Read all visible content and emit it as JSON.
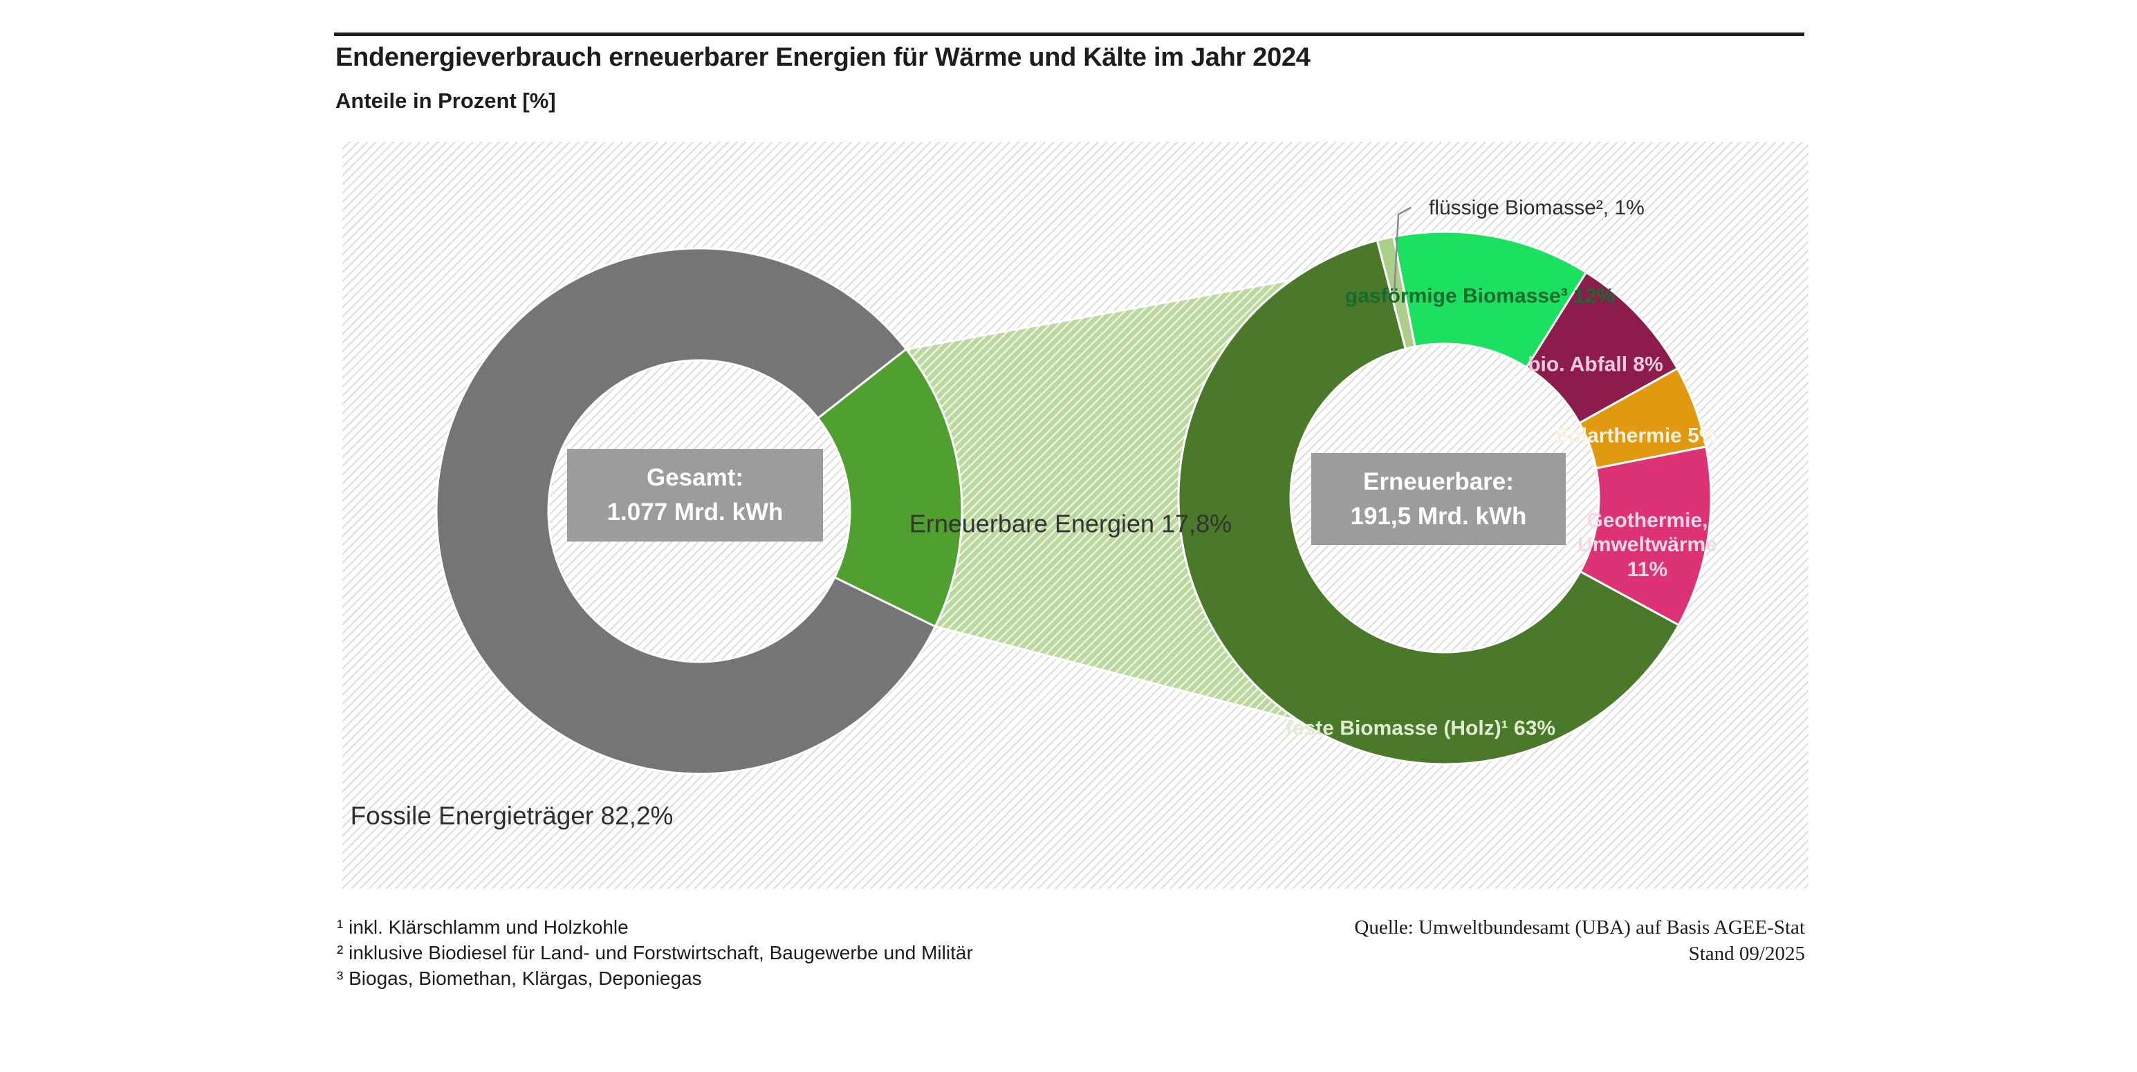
{
  "title": "Endenergieverbrauch erneuerbarer Energien für Wärme und Kälte im Jahr 2024",
  "subtitle": "Anteile in Prozent [%]",
  "chart_data": {
    "type": "pie",
    "subtype": "double-donut-with-connector",
    "unit": "Mrd. kWh",
    "left_donut": {
      "center_label": "Gesamt:\n1.077 Mrd. kWh",
      "total_value": 1077,
      "segments": [
        {
          "name": "Fossile Energieträger",
          "value": 82.2,
          "color": "#757575",
          "label_text": "Fossile Energieträger\n82,2%"
        },
        {
          "name": "Erneuerbare Energien",
          "value": 17.8,
          "color": "#50a02f",
          "label_text": "Erneuerbare\nEnergien\n17,8%"
        }
      ]
    },
    "right_donut": {
      "center_label": "Erneuerbare:\n191,5 Mrd. kWh",
      "total_value": 191.5,
      "segments": [
        {
          "name": "gasförmige Biomasse",
          "value": 12,
          "color": "#1ce05f",
          "text_color": "#176b2d",
          "label_text": "gasförmige\nBiomasse³\n12%"
        },
        {
          "name": "bio. Abfall",
          "value": 8,
          "color": "#8c1c4b",
          "text_color": "#eecbdc",
          "label_text": "bio. Abfall\n8%"
        },
        {
          "name": "Solarthermie",
          "value": 5,
          "color": "#e19a10",
          "text_color": "#fdf2df",
          "label_text": "Solarthermie\n5%"
        },
        {
          "name": "Geothermie, Umweltwärme",
          "value": 11,
          "color": "#dd3273",
          "text_color": "#f7d9e6",
          "label_text": "Geothermie,\nUmweltwärme\n11%"
        },
        {
          "name": "feste Biomasse (Holz)",
          "value": 63,
          "color": "#4a7929",
          "text_color": "#dfecd2",
          "label_text": "feste Biomasse\n(Holz)¹\n63%"
        },
        {
          "name": "flüssige Biomasse",
          "value": 1,
          "color": "#acce8b",
          "text_color": "#2f2f2d",
          "label_text": "flüssige Biomasse², 1%"
        }
      ]
    },
    "connector": {
      "color": "#bcd89f",
      "label_text": "Erneuerbare\nEnergien\n17,8%"
    }
  },
  "footnotes": [
    "¹ inkl. Klärschlamm und Holzkohle",
    "² inklusive Biodiesel für Land- und Forstwirtschaft, Baugewerbe und Militär",
    "³ Biogas, Biomethan, Klärgas, Deponiegas"
  ],
  "source": [
    "Quelle: Umweltbundesamt (UBA) auf Basis AGEE-Stat",
    "Stand 09/2025"
  ]
}
